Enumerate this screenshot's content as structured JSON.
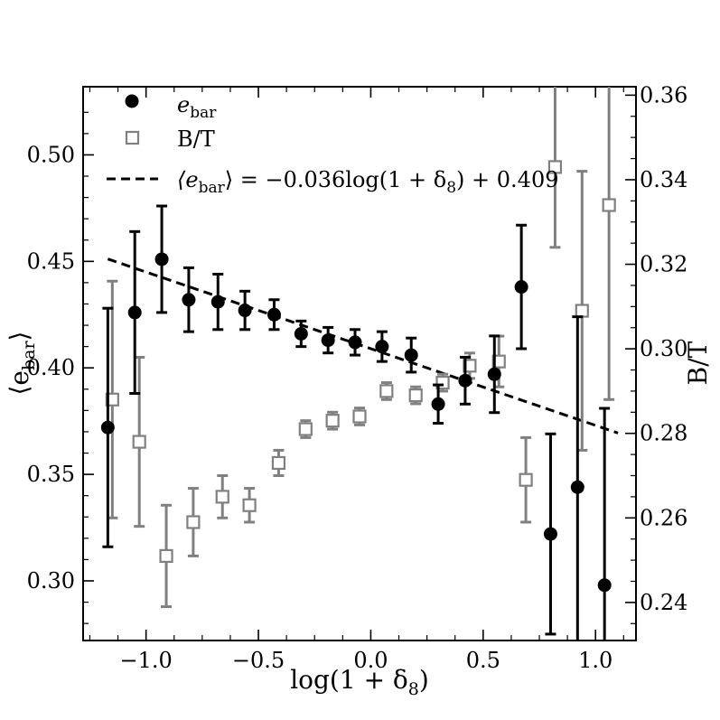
{
  "chart_data": {
    "type": "scatter",
    "xlabel": "log(1 + δ",
    "xlabel_sub": "8",
    "xlabel_end": ")",
    "ylabel_left": "⟨e",
    "ylabel_left_sub": "bar",
    "ylabel_left_end": "⟩",
    "ylabel_right": "B/T",
    "xlim": [
      -1.28,
      1.18
    ],
    "ylim_left": [
      0.272,
      0.532
    ],
    "ylim_right": [
      0.231,
      0.362
    ],
    "x_ticks": [
      -1.0,
      -0.5,
      0.0,
      0.5,
      1.0
    ],
    "x_tick_labels": [
      "−1.0",
      "−0.5",
      "0.0",
      "0.5",
      "1.0"
    ],
    "y_left_ticks": [
      0.3,
      0.35,
      0.4,
      0.45,
      0.5
    ],
    "y_left_tick_labels": [
      "0.30",
      "0.35",
      "0.40",
      "0.45",
      "0.50"
    ],
    "y_right_ticks": [
      0.24,
      0.26,
      0.28,
      0.3,
      0.32,
      0.34,
      0.36
    ],
    "y_right_tick_labels": [
      "0.24",
      "0.26",
      "0.28",
      "0.30",
      "0.32",
      "0.34",
      "0.36"
    ],
    "legend_position": "top-left",
    "grid": false,
    "series": [
      {
        "name": "e",
        "name_sub": "bar",
        "marker": "filled-circle",
        "color": "#000000",
        "axis": "left",
        "x": [
          -1.17,
          -1.05,
          -0.93,
          -0.81,
          -0.68,
          -0.56,
          -0.43,
          -0.31,
          -0.19,
          -0.07,
          0.05,
          0.18,
          0.3,
          0.42,
          0.55,
          0.67,
          0.8,
          0.92,
          1.04
        ],
        "y": [
          0.372,
          0.426,
          0.451,
          0.432,
          0.431,
          0.427,
          0.425,
          0.416,
          0.413,
          0.412,
          0.41,
          0.406,
          0.383,
          0.394,
          0.397,
          0.438,
          0.322,
          0.344,
          0.298
        ],
        "y_err": [
          0.056,
          0.038,
          0.025,
          0.015,
          0.013,
          0.009,
          0.007,
          0.006,
          0.006,
          0.006,
          0.007,
          0.008,
          0.009,
          0.011,
          0.018,
          0.029,
          0.047,
          0.08,
          0.083
        ]
      },
      {
        "name": "B/T",
        "marker": "open-square",
        "color": "#808080",
        "axis": "right",
        "x": [
          -1.15,
          -1.03,
          -0.91,
          -0.79,
          -0.66,
          -0.54,
          -0.41,
          -0.29,
          -0.17,
          -0.05,
          0.07,
          0.2,
          0.32,
          0.44,
          0.57,
          0.69,
          0.82,
          0.94,
          1.06
        ],
        "y": [
          0.288,
          0.278,
          0.251,
          0.259,
          0.265,
          0.263,
          0.273,
          0.281,
          0.283,
          0.284,
          0.29,
          0.289,
          0.292,
          0.296,
          0.297,
          0.269,
          0.343,
          0.309,
          0.334
        ],
        "y_err": [
          0.028,
          0.02,
          0.012,
          0.008,
          0.005,
          0.004,
          0.003,
          0.002,
          0.002,
          0.002,
          0.002,
          0.002,
          0.002,
          0.003,
          0.006,
          0.01,
          0.019,
          0.033,
          0.046
        ]
      }
    ],
    "fit_line": {
      "label_lhs": "⟨e",
      "label_lhs_sub": "bar",
      "label_rhs": "⟩ = −0.036log(1 + δ",
      "label_rhs_sub": "8",
      "label_end": ") + 0.409",
      "slope": -0.036,
      "intercept": 0.409,
      "x_range": [
        -1.17,
        1.1
      ],
      "style": "dashed",
      "color": "#000000"
    }
  }
}
